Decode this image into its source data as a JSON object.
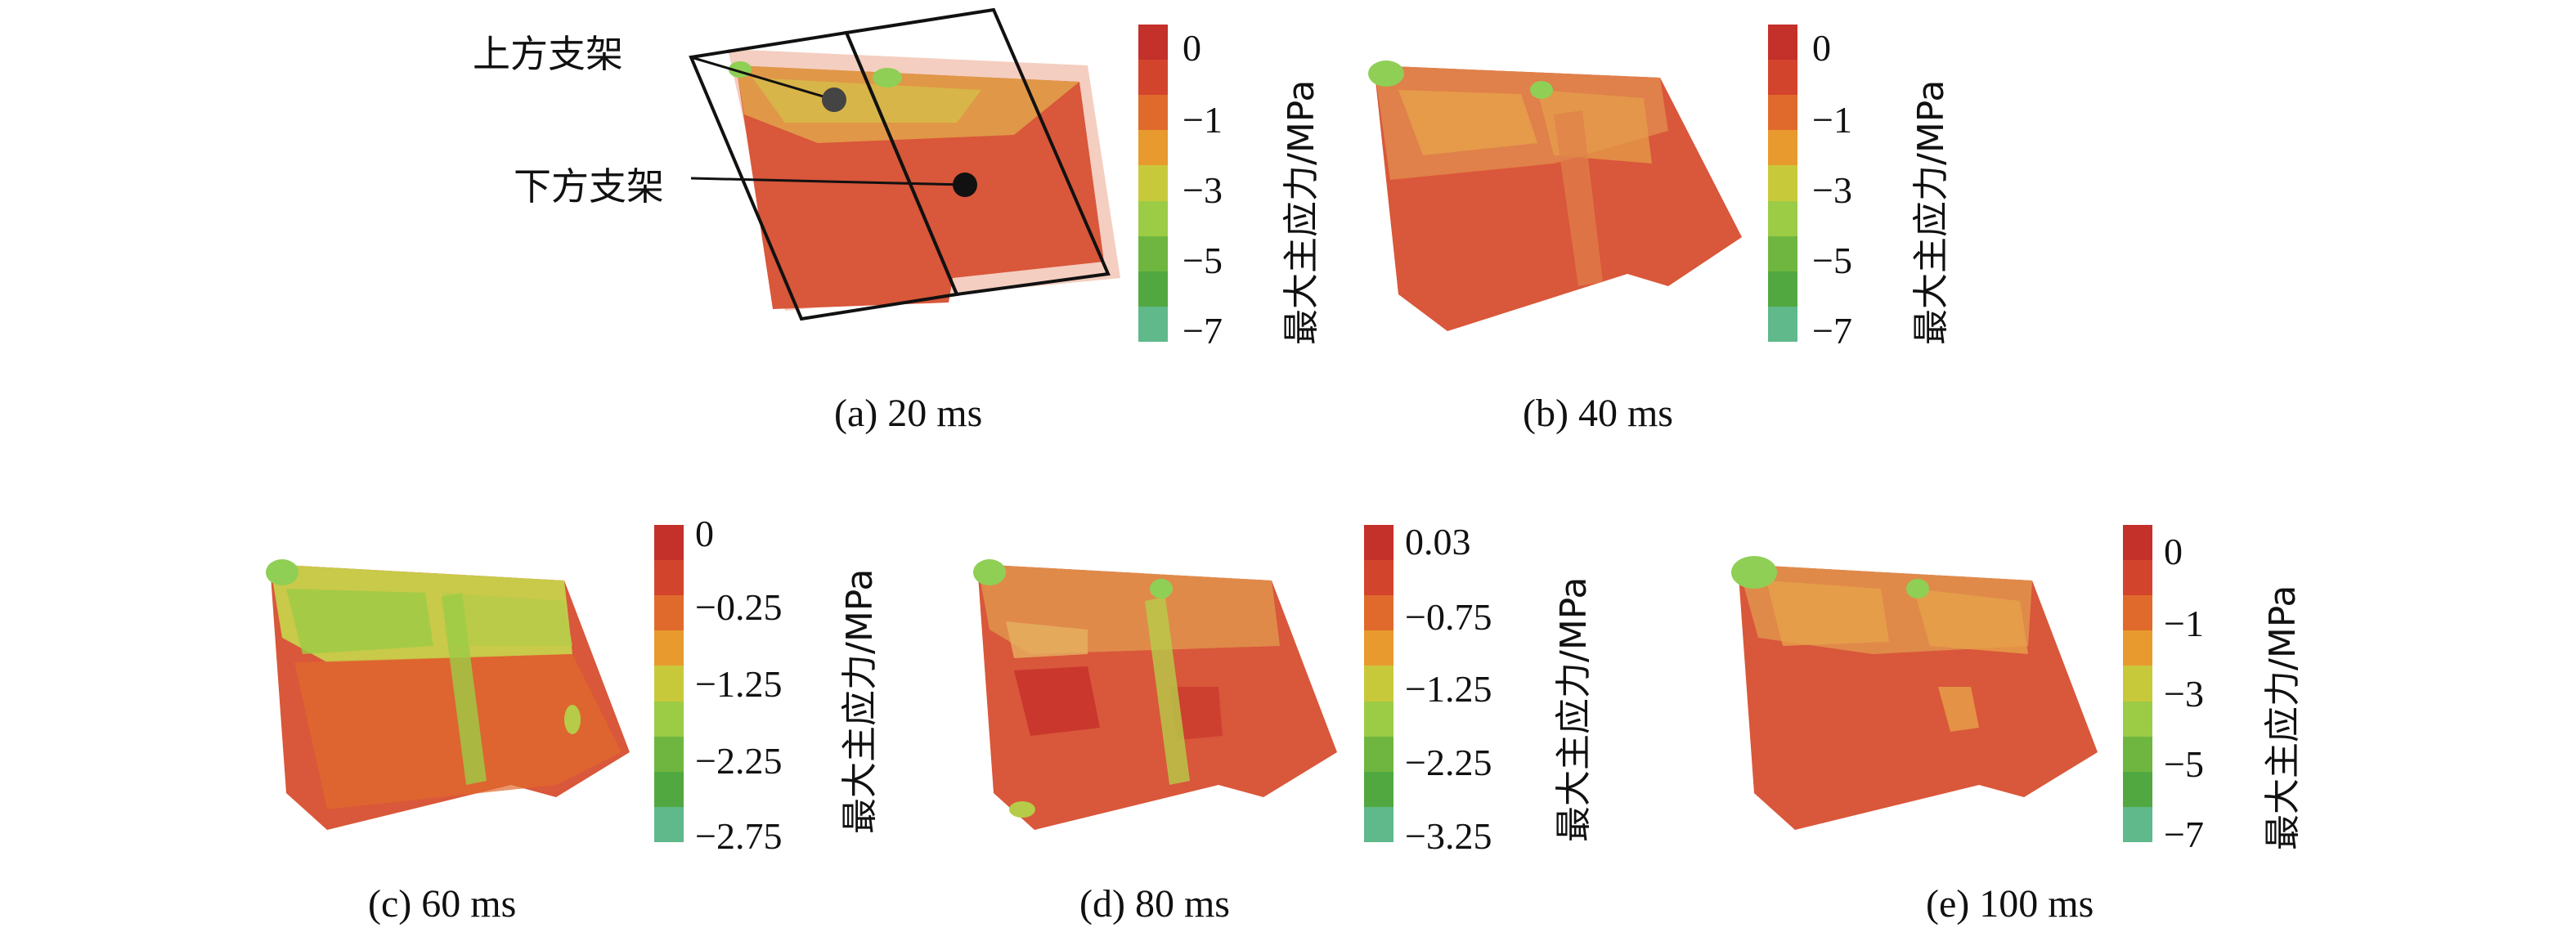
{
  "colorbar_title": "最大主应力/MPa",
  "colors": {
    "scale": [
      "#c4302a",
      "#d3442c",
      "#e06a2c",
      "#e89a2e",
      "#c8c93a",
      "#9ccc45",
      "#6fb640",
      "#52a840",
      "#5fb98b"
    ],
    "plate_base": "#d9573a",
    "plate_dark": "#c8402b",
    "plate_mid": "#e0804a",
    "plate_yellow": "#d8b548",
    "plate_green": "#8fcf55",
    "frame": "#111111"
  },
  "callouts": {
    "upper_bracket": "上方支架",
    "lower_bracket": "下方支架"
  },
  "panels": [
    {
      "caption": "(a) 20 ms",
      "ticks": [
        "0",
        "−1",
        "−3",
        "−5",
        "−7"
      ]
    },
    {
      "caption": "(b) 40 ms",
      "ticks": [
        "0",
        "−1",
        "−3",
        "−5",
        "−7"
      ]
    },
    {
      "caption": "(c) 60 ms",
      "ticks": [
        "0",
        "−0.25",
        "−1.25",
        "−2.25",
        "−2.75"
      ]
    },
    {
      "caption": "(d) 80 ms",
      "ticks": [
        "0.03",
        "−0.75",
        "−1.25",
        "−2.25",
        "−3.25"
      ]
    },
    {
      "caption": "(e) 100 ms",
      "ticks": [
        "0",
        "−1",
        "−3",
        "−5",
        "−7"
      ]
    }
  ]
}
